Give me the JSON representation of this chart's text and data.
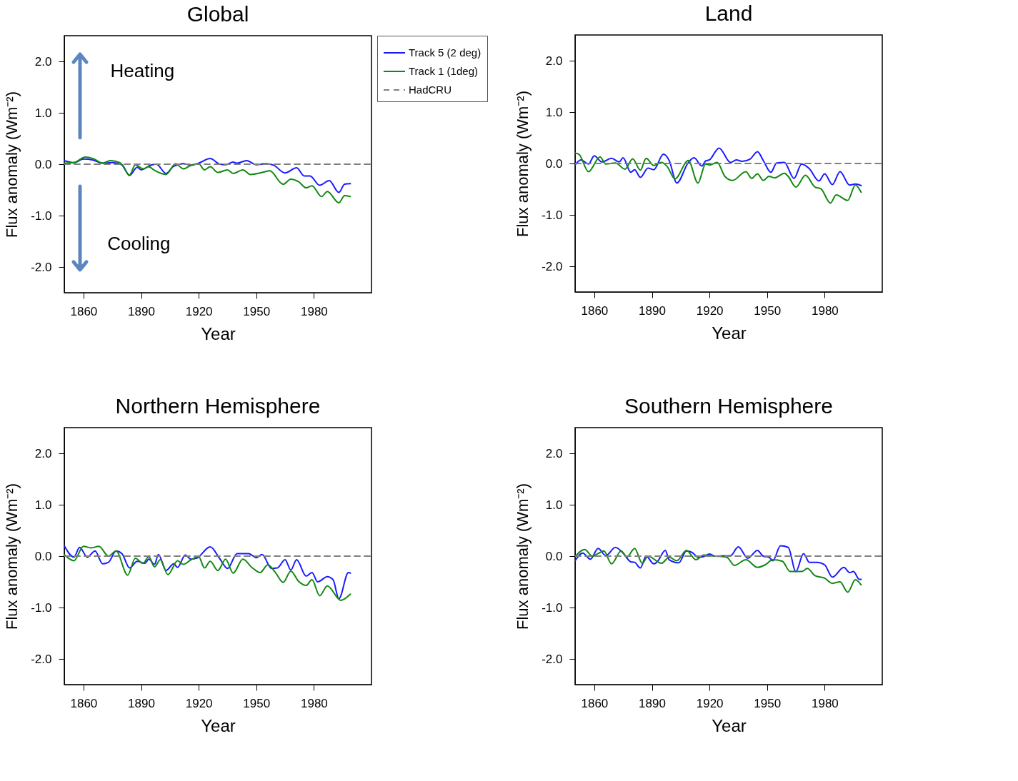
{
  "chart_data": [
    {
      "type": "line",
      "title": "Global",
      "xlabel": "Year",
      "ylabel": "Flux anomaly (Wm⁻²)",
      "xlim": [
        1850,
        2010
      ],
      "xticks": [
        1860,
        1890,
        1920,
        1950,
        1980
      ],
      "ylim": [
        -2.5,
        2.5
      ],
      "yticks": [
        {
          "value": -2,
          "label": "-2.0"
        },
        {
          "value": -1,
          "label": "-1.0"
        },
        {
          "value": 0,
          "label": "0.0"
        },
        {
          "value": 1,
          "label": "1.0"
        },
        {
          "value": 2,
          "label": "2.0"
        }
      ],
      "legend": "right",
      "annotations": [
        "Heating",
        "Cooling"
      ],
      "series": [
        {
          "name": "Track 5 (2 deg)",
          "color": "#1a1aff",
          "line_style": "solid",
          "x": [
            1850,
            1855,
            1860,
            1865,
            1870,
            1875,
            1880,
            1884,
            1888,
            1890,
            1895,
            1898,
            1903,
            1907,
            1912,
            1916,
            1920,
            1926,
            1931,
            1934,
            1938,
            1940,
            1945,
            1950,
            1955,
            1959,
            1965,
            1971,
            1975,
            1978,
            1983,
            1988,
            1993,
            1996,
            1999
          ],
          "values": [
            0.07,
            0.03,
            0.1,
            0.08,
            0.02,
            0.03,
            -0.01,
            -0.22,
            -0.06,
            -0.11,
            -0.02,
            0.0,
            -0.18,
            -0.04,
            0.01,
            -0.02,
            0.02,
            0.11,
            0.0,
            -0.01,
            0.04,
            0.02,
            0.07,
            -0.01,
            0.01,
            -0.02,
            -0.17,
            -0.07,
            -0.23,
            -0.23,
            -0.41,
            -0.32,
            -0.55,
            -0.39,
            -0.38
          ]
        },
        {
          "name": "Track 1 (1deg)",
          "color": "#118811",
          "line_style": "solid",
          "x": [
            1850,
            1855,
            1861,
            1865,
            1870,
            1874,
            1879,
            1884,
            1887,
            1891,
            1894,
            1897,
            1903,
            1908,
            1912,
            1916,
            1920,
            1923,
            1926,
            1930,
            1935,
            1938,
            1943,
            1947,
            1952,
            1957,
            1964,
            1968,
            1972,
            1976,
            1979,
            1984,
            1987,
            1993,
            1996,
            1999
          ],
          "values": [
            0.02,
            0.03,
            0.14,
            0.11,
            0.02,
            0.07,
            0.03,
            -0.21,
            -0.01,
            -0.09,
            -0.05,
            -0.12,
            -0.2,
            0.01,
            -0.09,
            -0.02,
            0.01,
            -0.11,
            -0.05,
            -0.16,
            -0.11,
            -0.18,
            -0.11,
            -0.2,
            -0.17,
            -0.13,
            -0.39,
            -0.29,
            -0.34,
            -0.46,
            -0.42,
            -0.63,
            -0.53,
            -0.75,
            -0.61,
            -0.63
          ]
        },
        {
          "name": "HadCRU",
          "color": "#7f7f7f",
          "line_style": "dashed",
          "x": [
            1850,
            2010
          ],
          "values": [
            0,
            0
          ]
        }
      ]
    },
    {
      "type": "line",
      "title": "Land",
      "xlabel": "Year",
      "ylabel": "Flux anomaly (Wm⁻²)",
      "xlim": [
        1850,
        2010
      ],
      "xticks": [
        1860,
        1890,
        1920,
        1950,
        1980
      ],
      "ylim": [
        -2.5,
        2.5
      ],
      "yticks": [
        {
          "value": -2,
          "label": "-2.0"
        },
        {
          "value": -1,
          "label": "-1.0"
        },
        {
          "value": 0,
          "label": "0.0"
        },
        {
          "value": 1,
          "label": "1.0"
        },
        {
          "value": 2,
          "label": "2.0"
        }
      ],
      "legend": false,
      "series": [
        {
          "color": "#1a1aff",
          "line_style": "solid",
          "x": [
            1850,
            1853,
            1857,
            1860,
            1864,
            1869,
            1873,
            1875,
            1879,
            1881,
            1884,
            1888,
            1891,
            1896,
            1899,
            1903,
            1909,
            1912,
            1916,
            1918,
            1920,
            1925,
            1931,
            1934,
            1937,
            1941,
            1945,
            1948,
            1952,
            1955,
            1959,
            1964,
            1968,
            1972,
            1977,
            1980,
            1984,
            1988,
            1993,
            1996,
            1999
          ],
          "values": [
            -0.03,
            0.07,
            -0.01,
            0.15,
            0.03,
            0.1,
            0.03,
            0.11,
            -0.17,
            -0.12,
            -0.27,
            -0.09,
            -0.12,
            0.18,
            0.06,
            -0.38,
            0.02,
            0.11,
            -0.05,
            0.05,
            0.07,
            0.3,
            0.02,
            0.07,
            0.04,
            0.08,
            0.23,
            0.06,
            -0.17,
            0.01,
            0.02,
            -0.29,
            -0.01,
            -0.1,
            -0.34,
            -0.2,
            -0.41,
            -0.16,
            -0.42,
            -0.4,
            -0.43
          ]
        },
        {
          "color": "#118811",
          "line_style": "solid",
          "x": [
            1850,
            1852,
            1857,
            1863,
            1866,
            1871,
            1876,
            1880,
            1884,
            1887,
            1891,
            1895,
            1898,
            1902,
            1909,
            1914,
            1918,
            1920,
            1924,
            1928,
            1932,
            1939,
            1942,
            1945,
            1948,
            1951,
            1954,
            1959,
            1961,
            1965,
            1970,
            1975,
            1978,
            1983,
            1986,
            1992,
            1996,
            1999
          ],
          "values": [
            0.2,
            0.18,
            -0.16,
            0.13,
            -0.01,
            0.01,
            -0.11,
            0.09,
            -0.13,
            0.1,
            -0.04,
            0.02,
            -0.06,
            -0.3,
            0.06,
            -0.38,
            -0.01,
            -0.03,
            0.02,
            -0.25,
            -0.33,
            -0.16,
            -0.29,
            -0.2,
            -0.33,
            -0.25,
            -0.28,
            -0.19,
            -0.25,
            -0.46,
            -0.23,
            -0.46,
            -0.49,
            -0.77,
            -0.61,
            -0.72,
            -0.42,
            -0.56
          ]
        },
        {
          "color": "#7f7f7f",
          "line_style": "dashed",
          "x": [
            1850,
            2010
          ],
          "values": [
            0,
            0
          ]
        }
      ]
    },
    {
      "type": "line",
      "title": "Northern Hemisphere",
      "xlabel": "Year",
      "ylabel": "Flux anomaly (Wm⁻²)",
      "xlim": [
        1850,
        2010
      ],
      "xticks": [
        1860,
        1890,
        1920,
        1950,
        1980
      ],
      "ylim": [
        -2.5,
        2.5
      ],
      "yticks": [
        {
          "value": -2,
          "label": "-2.0"
        },
        {
          "value": -1,
          "label": "-1.0"
        },
        {
          "value": 0,
          "label": "0.0"
        },
        {
          "value": 1,
          "label": "1.0"
        },
        {
          "value": 2,
          "label": "2.0"
        }
      ],
      "legend": false,
      "series": [
        {
          "color": "#1a1aff",
          "line_style": "solid",
          "x": [
            1850,
            1855,
            1858,
            1862,
            1866,
            1870,
            1873,
            1877,
            1880,
            1884,
            1888,
            1892,
            1894,
            1897,
            1899,
            1903,
            1907,
            1909,
            1913,
            1916,
            1919,
            1926,
            1931,
            1935,
            1940,
            1946,
            1950,
            1953,
            1958,
            1961,
            1965,
            1968,
            1971,
            1976,
            1979,
            1982,
            1987,
            1990,
            1993,
            1998,
            1999
          ],
          "values": [
            0.2,
            -0.02,
            0.17,
            -0.02,
            0.1,
            -0.15,
            -0.12,
            0.1,
            0.05,
            -0.23,
            -0.1,
            -0.14,
            -0.06,
            -0.16,
            0.03,
            -0.28,
            -0.15,
            -0.22,
            0.02,
            -0.06,
            -0.04,
            0.18,
            -0.05,
            -0.24,
            0.05,
            0.05,
            -0.03,
            0.03,
            -0.24,
            -0.23,
            -0.07,
            -0.27,
            -0.07,
            -0.39,
            -0.32,
            -0.5,
            -0.4,
            -0.46,
            -0.83,
            -0.32,
            -0.33
          ]
        },
        {
          "color": "#118811",
          "line_style": "solid",
          "x": [
            1850,
            1855,
            1860,
            1864,
            1868,
            1873,
            1877,
            1883,
            1887,
            1891,
            1894,
            1897,
            1900,
            1904,
            1909,
            1912,
            1916,
            1920,
            1923,
            1926,
            1930,
            1934,
            1938,
            1943,
            1948,
            1952,
            1956,
            1960,
            1964,
            1968,
            1972,
            1976,
            1979,
            1983,
            1987,
            1994,
            1999
          ],
          "values": [
            0.03,
            -0.09,
            0.19,
            0.16,
            0.19,
            0.0,
            0.1,
            -0.37,
            -0.04,
            -0.14,
            -0.01,
            -0.21,
            -0.07,
            -0.36,
            -0.09,
            -0.16,
            -0.07,
            -0.01,
            -0.23,
            -0.1,
            -0.28,
            -0.06,
            -0.33,
            -0.06,
            -0.23,
            -0.32,
            -0.17,
            -0.32,
            -0.51,
            -0.29,
            -0.49,
            -0.57,
            -0.46,
            -0.77,
            -0.58,
            -0.86,
            -0.74
          ]
        },
        {
          "color": "#7f7f7f",
          "line_style": "dashed",
          "x": [
            1850,
            2010
          ],
          "values": [
            0,
            0
          ]
        }
      ]
    },
    {
      "type": "line",
      "title": "Southern Hemisphere",
      "xlabel": "Year",
      "ylabel": "Flux anomaly (Wm⁻²)",
      "xlim": [
        1850,
        2010
      ],
      "xticks": [
        1860,
        1890,
        1920,
        1950,
        1980
      ],
      "ylim": [
        -2.5,
        2.5
      ],
      "yticks": [
        {
          "value": -2,
          "label": "-2.0"
        },
        {
          "value": -1,
          "label": "-1.0"
        },
        {
          "value": 0,
          "label": "0.0"
        },
        {
          "value": 1,
          "label": "1.0"
        },
        {
          "value": 2,
          "label": "2.0"
        }
      ],
      "legend": false,
      "series": [
        {
          "color": "#1a1aff",
          "line_style": "solid",
          "x": [
            1850,
            1854,
            1858,
            1862,
            1866,
            1871,
            1875,
            1879,
            1881,
            1884,
            1887,
            1891,
            1893,
            1897,
            1899,
            1904,
            1908,
            1911,
            1914,
            1917,
            1920,
            1923,
            1931,
            1935,
            1940,
            1945,
            1948,
            1951,
            1953,
            1957,
            1961,
            1965,
            1969,
            1972,
            1976,
            1980,
            1984,
            1990,
            1993,
            1995,
            1998,
            1999
          ],
          "values": [
            -0.09,
            0.06,
            -0.06,
            0.15,
            0.01,
            0.17,
            0.06,
            -0.11,
            -0.12,
            -0.23,
            0.0,
            -0.15,
            -0.1,
            0.11,
            -0.07,
            -0.13,
            0.1,
            0.07,
            -0.02,
            -0.01,
            0.04,
            0.0,
            0.01,
            0.18,
            -0.04,
            0.11,
            0.0,
            -0.02,
            -0.09,
            0.2,
            0.17,
            -0.3,
            0.05,
            -0.12,
            -0.12,
            -0.17,
            -0.41,
            -0.22,
            -0.32,
            -0.3,
            -0.45,
            -0.45
          ]
        },
        {
          "color": "#118811",
          "line_style": "solid",
          "x": [
            1850,
            1855,
            1859,
            1862,
            1865,
            1869,
            1874,
            1877,
            1881,
            1885,
            1888,
            1895,
            1899,
            1903,
            1908,
            1913,
            1917,
            1923,
            1929,
            1933,
            1939,
            1945,
            1949,
            1953,
            1958,
            1962,
            1968,
            1971,
            1975,
            1980,
            1984,
            1988,
            1992,
            1996,
            1999
          ],
          "values": [
            -0.01,
            0.13,
            0.0,
            0.05,
            0.1,
            -0.15,
            0.1,
            -0.02,
            0.15,
            -0.14,
            0.0,
            -0.14,
            -0.02,
            -0.09,
            0.11,
            -0.07,
            0.02,
            0.0,
            -0.02,
            -0.18,
            -0.07,
            -0.22,
            -0.17,
            -0.07,
            -0.1,
            -0.3,
            -0.3,
            -0.24,
            -0.38,
            -0.43,
            -0.53,
            -0.5,
            -0.7,
            -0.46,
            -0.56
          ]
        },
        {
          "color": "#7f7f7f",
          "line_style": "dashed",
          "x": [
            1850,
            2010
          ],
          "values": [
            0,
            0
          ]
        }
      ]
    }
  ]
}
